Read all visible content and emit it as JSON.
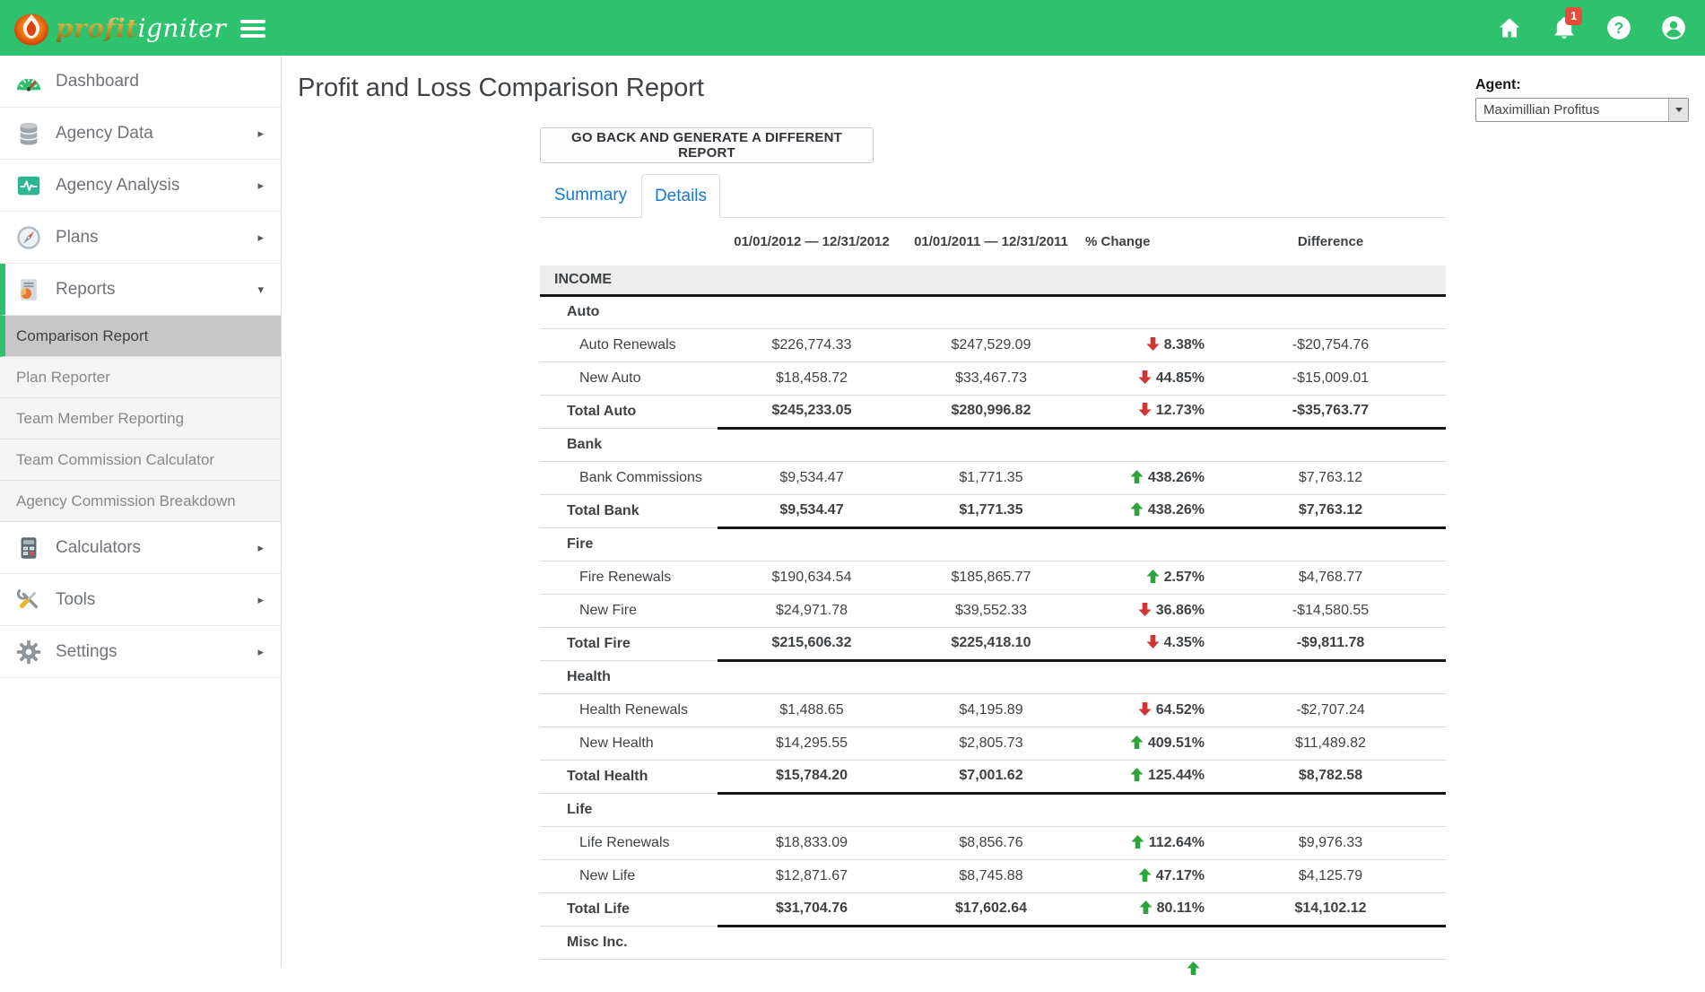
{
  "topbar": {
    "logo": {
      "primary": "profit",
      "secondary": "igniter"
    },
    "notification_count": "1",
    "icons": [
      "home-icon",
      "bell-icon",
      "help-icon",
      "user-account-icon"
    ]
  },
  "sidebar": {
    "items": [
      {
        "label": "Dashboard",
        "icon": "dashboard-icon",
        "arrow": ""
      },
      {
        "label": "Agency Data",
        "icon": "database-icon",
        "arrow": "right"
      },
      {
        "label": "Agency Analysis",
        "icon": "analysis-icon",
        "arrow": "right"
      },
      {
        "label": "Plans",
        "icon": "compass-icon",
        "arrow": "right"
      },
      {
        "label": "Reports",
        "icon": "report-icon",
        "arrow": "down",
        "active": true,
        "children": [
          {
            "label": "Comparison Report",
            "selected": true
          },
          {
            "label": "Plan Reporter"
          },
          {
            "label": "Team Member Reporting"
          },
          {
            "label": "Team Commission Calculator"
          },
          {
            "label": "Agency Commission Breakdown"
          }
        ]
      },
      {
        "label": "Calculators",
        "icon": "calculator-icon",
        "arrow": "right"
      },
      {
        "label": "Tools",
        "icon": "tools-icon",
        "arrow": "right"
      },
      {
        "label": "Settings",
        "icon": "gear-icon",
        "arrow": "right"
      }
    ]
  },
  "page": {
    "title": "Profit and Loss Comparison Report"
  },
  "controls": {
    "back_button_label": "GO BACK AND GENERATE A DIFFERENT REPORT"
  },
  "agent": {
    "label": "Agent:",
    "selected": "Maximillian Profitus"
  },
  "tabs": [
    {
      "label": "Summary",
      "active": false
    },
    {
      "label": "Details",
      "active": true
    }
  ],
  "report_table": {
    "columns": [
      "",
      "01/01/2012 — 12/31/2012",
      "01/01/2011 — 12/31/2011",
      "% Change",
      "Difference"
    ],
    "rows": [
      {
        "type": "header",
        "label": "INCOME"
      },
      {
        "type": "group",
        "label": "Auto"
      },
      {
        "type": "data",
        "label": "Auto Renewals",
        "y2012": "$226,774.33",
        "y2011": "$247,529.09",
        "change": "8.38%",
        "direction": "down",
        "difference": "-$20,754.76"
      },
      {
        "type": "data",
        "label": "New Auto",
        "y2012": "$18,458.72",
        "y2011": "$33,467.73",
        "change": "44.85%",
        "direction": "down",
        "difference": "-$15,009.01"
      },
      {
        "type": "total",
        "label": "Total Auto",
        "y2012": "$245,233.05",
        "y2011": "$280,996.82",
        "change": "12.73%",
        "direction": "down",
        "difference": "-$35,763.77"
      },
      {
        "type": "group",
        "label": "Bank"
      },
      {
        "type": "data",
        "label": "Bank Commissions",
        "y2012": "$9,534.47",
        "y2011": "$1,771.35",
        "change": "438.26%",
        "direction": "up",
        "difference": "$7,763.12"
      },
      {
        "type": "total",
        "label": "Total Bank",
        "y2012": "$9,534.47",
        "y2011": "$1,771.35",
        "change": "438.26%",
        "direction": "up",
        "difference": "$7,763.12"
      },
      {
        "type": "group",
        "label": "Fire"
      },
      {
        "type": "data",
        "label": "Fire Renewals",
        "y2012": "$190,634.54",
        "y2011": "$185,865.77",
        "change": "2.57%",
        "direction": "up",
        "difference": "$4,768.77"
      },
      {
        "type": "data",
        "label": "New Fire",
        "y2012": "$24,971.78",
        "y2011": "$39,552.33",
        "change": "36.86%",
        "direction": "down",
        "difference": "-$14,580.55"
      },
      {
        "type": "total",
        "label": "Total Fire",
        "y2012": "$215,606.32",
        "y2011": "$225,418.10",
        "change": "4.35%",
        "direction": "down",
        "difference": "-$9,811.78"
      },
      {
        "type": "group",
        "label": "Health"
      },
      {
        "type": "data",
        "label": "Health Renewals",
        "y2012": "$1,488.65",
        "y2011": "$4,195.89",
        "change": "64.52%",
        "direction": "down",
        "difference": "-$2,707.24"
      },
      {
        "type": "data",
        "label": "New Health",
        "y2012": "$14,295.55",
        "y2011": "$2,805.73",
        "change": "409.51%",
        "direction": "up",
        "difference": "$11,489.82"
      },
      {
        "type": "total",
        "label": "Total Health",
        "y2012": "$15,784.20",
        "y2011": "$7,001.62",
        "change": "125.44%",
        "direction": "up",
        "difference": "$8,782.58"
      },
      {
        "type": "group",
        "label": "Life"
      },
      {
        "type": "data",
        "label": "Life Renewals",
        "y2012": "$18,833.09",
        "y2011": "$8,856.76",
        "change": "112.64%",
        "direction": "up",
        "difference": "$9,976.33"
      },
      {
        "type": "data",
        "label": "New Life",
        "y2012": "$12,871.67",
        "y2011": "$8,745.88",
        "change": "47.17%",
        "direction": "up",
        "difference": "$4,125.79"
      },
      {
        "type": "total",
        "label": "Total Life",
        "y2012": "$31,704.76",
        "y2011": "$17,602.64",
        "change": "80.11%",
        "direction": "up",
        "difference": "$14,102.12"
      },
      {
        "type": "group",
        "label": "Misc Inc."
      },
      {
        "type": "partial",
        "label": "",
        "y2012": "",
        "y2011": "",
        "change": "",
        "direction": "up",
        "difference": ""
      }
    ]
  },
  "colors": {
    "topbar_green": "#2ec26f",
    "accent_green": "#2ec26f",
    "tab_blue": "#1878d1",
    "positive_green": "#2da33c",
    "negative_red": "#cf3532",
    "badge_red": "#e74c3c"
  }
}
